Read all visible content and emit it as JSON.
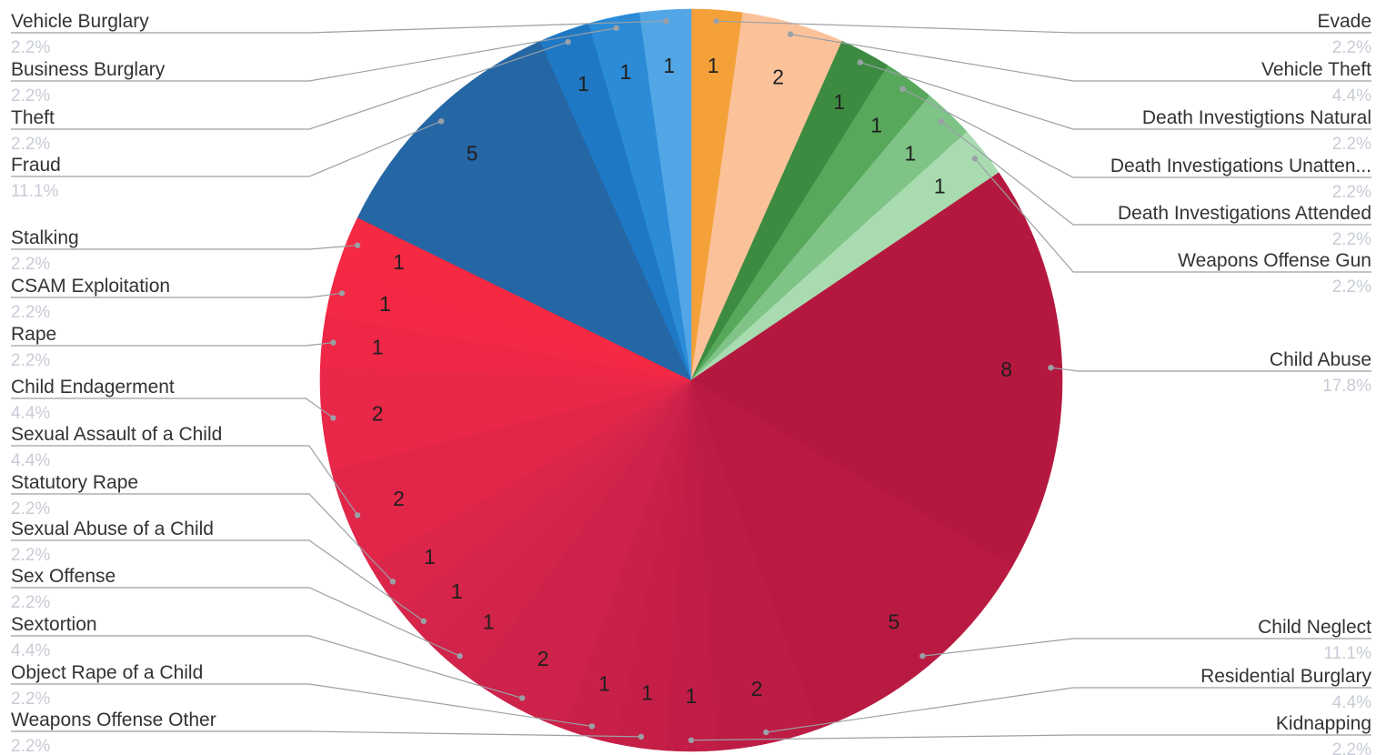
{
  "chart_data": {
    "type": "pie",
    "slices": [
      {
        "label": "Evade",
        "value": 1,
        "percent": "2.2%",
        "color": "#f5a13a",
        "side": "right"
      },
      {
        "label": "Vehicle Theft",
        "value": 2,
        "percent": "4.4%",
        "color": "#fbc29a",
        "side": "right"
      },
      {
        "label": "Death Investigtions Natural",
        "value": 1,
        "percent": "2.2%",
        "color": "#3d8b41",
        "side": "right"
      },
      {
        "label": "Death Investigations Unatten...",
        "value": 1,
        "percent": "2.2%",
        "color": "#57a85b",
        "side": "right"
      },
      {
        "label": "Death Investigations Attended",
        "value": 1,
        "percent": "2.2%",
        "color": "#7fc386",
        "side": "right"
      },
      {
        "label": "Weapons Offense Gun",
        "value": 1,
        "percent": "2.2%",
        "color": "#a9dbb0",
        "side": "right"
      },
      {
        "label": "Child Abuse",
        "value": 8,
        "percent": "17.8%",
        "color": "#b5183f",
        "side": "right"
      },
      {
        "label": "Child Neglect",
        "value": 5,
        "percent": "11.1%",
        "color": "#b91a41",
        "side": "right"
      },
      {
        "label": "Residential Burglary",
        "value": 2,
        "percent": "4.4%",
        "color": "#bd1c44",
        "side": "right"
      },
      {
        "label": "Kidnapping",
        "value": 1,
        "percent": "2.2%",
        "color": "#c11d46",
        "side": "right"
      },
      {
        "label": "Weapons Offense Other",
        "value": 1,
        "percent": "2.2%",
        "color": "#c51f47",
        "side": "left"
      },
      {
        "label": "Object Rape of a Child",
        "value": 1,
        "percent": "2.2%",
        "color": "#c92048",
        "side": "left"
      },
      {
        "label": "Sextortion",
        "value": 2,
        "percent": "4.4%",
        "color": "#cd2249",
        "side": "left"
      },
      {
        "label": "Sex Offense",
        "value": 1,
        "percent": "2.2%",
        "color": "#d2234a",
        "side": "left"
      },
      {
        "label": "Sexual Abuse of a Child",
        "value": 1,
        "percent": "2.2%",
        "color": "#d6244a",
        "side": "left"
      },
      {
        "label": "Statutory Rape",
        "value": 1,
        "percent": "2.2%",
        "color": "#db254a",
        "side": "left"
      },
      {
        "label": "Sexual Assault of a Child",
        "value": 2,
        "percent": "4.4%",
        "color": "#e2264a",
        "side": "left"
      },
      {
        "label": "Child Endagerment",
        "value": 2,
        "percent": "4.4%",
        "color": "#e82749",
        "side": "left"
      },
      {
        "label": "Rape",
        "value": 1,
        "percent": "2.2%",
        "color": "#ee2746",
        "side": "left"
      },
      {
        "label": "CSAM Exploitation",
        "value": 1,
        "percent": "2.2%",
        "color": "#f22844",
        "side": "left"
      },
      {
        "label": "Stalking",
        "value": 1,
        "percent": "2.2%",
        "color": "#f52942",
        "side": "left"
      },
      {
        "label": "Fraud",
        "value": 5,
        "percent": "11.1%",
        "color": "#2566a5",
        "side": "left"
      },
      {
        "label": "Theft",
        "value": 1,
        "percent": "2.2%",
        "color": "#1f78c4",
        "side": "left"
      },
      {
        "label": "Business Burglary",
        "value": 1,
        "percent": "2.2%",
        "color": "#2b8bd6",
        "side": "left"
      },
      {
        "label": "Vehicle Burglary",
        "value": 1,
        "percent": "2.2%",
        "color": "#52a6e6",
        "side": "left"
      }
    ],
    "title": "",
    "legend": "none"
  }
}
